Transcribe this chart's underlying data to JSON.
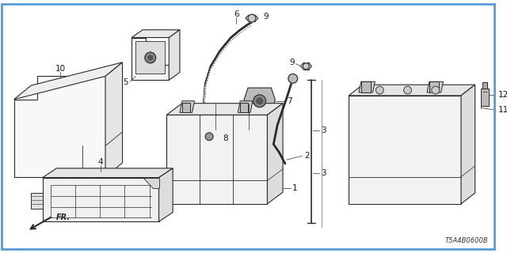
{
  "bg_color": "#ffffff",
  "border_blue": "#5b9bd5",
  "line_color": "#2a2a2a",
  "label_color": "#1a1a1a",
  "diagram_code": "T5A4B0600B",
  "fig_width": 6.4,
  "fig_height": 3.2,
  "dpi": 100
}
